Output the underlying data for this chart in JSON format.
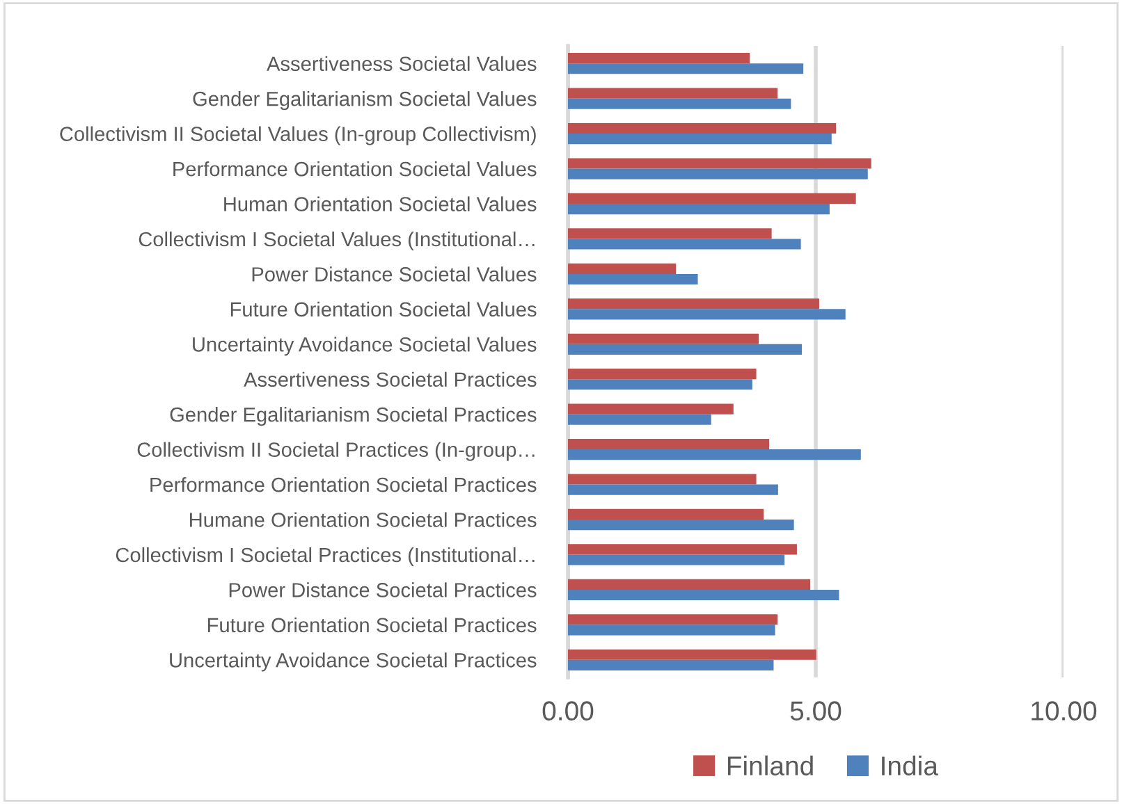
{
  "chart_data": {
    "type": "bar",
    "orientation": "horizontal",
    "categories": [
      "Assertiveness Societal Values",
      "Gender Egalitarianism Societal Values",
      "Collectivism II Societal Values (In-group Collectivism)",
      "Performance Orientation Societal Values",
      "Human Orientation Societal Values",
      "Collectivism I Societal Values (Institutional…",
      "Power Distance Societal Values",
      "Future Orientation Societal Values",
      "Uncertainty Avoidance Societal Values",
      "Assertiveness Societal Practices",
      "Gender Egalitarianism Societal Practices",
      "Collectivism II Societal Practices (In-group…",
      "Performance Orientation Societal Practices",
      "Humane Orientation Societal Practices",
      "Collectivism I Societal Practices (Institutional…",
      "Power Distance Societal Practices",
      "Future Orientation Societal Practices",
      "Uncertainty Avoidance Societal Practices"
    ],
    "series": [
      {
        "name": "Finland",
        "color": "#c0504d",
        "values": [
          3.67,
          4.23,
          5.41,
          6.12,
          5.81,
          4.11,
          2.18,
          5.07,
          3.85,
          3.8,
          3.34,
          4.06,
          3.8,
          3.95,
          4.62,
          4.89,
          4.23,
          5.01
        ]
      },
      {
        "name": "India",
        "color": "#4f81bd",
        "values": [
          4.75,
          4.5,
          5.32,
          6.05,
          5.28,
          4.7,
          2.62,
          5.6,
          4.72,
          3.72,
          2.89,
          5.91,
          4.24,
          4.56,
          4.37,
          5.47,
          4.18,
          4.15
        ]
      }
    ],
    "xlim": [
      0,
      10
    ],
    "xticks": [
      {
        "value": 0,
        "label": "0.00"
      },
      {
        "value": 5,
        "label": "5.00"
      },
      {
        "value": 10,
        "label": "10.00"
      }
    ],
    "grid": "x",
    "legend": "bottom"
  }
}
